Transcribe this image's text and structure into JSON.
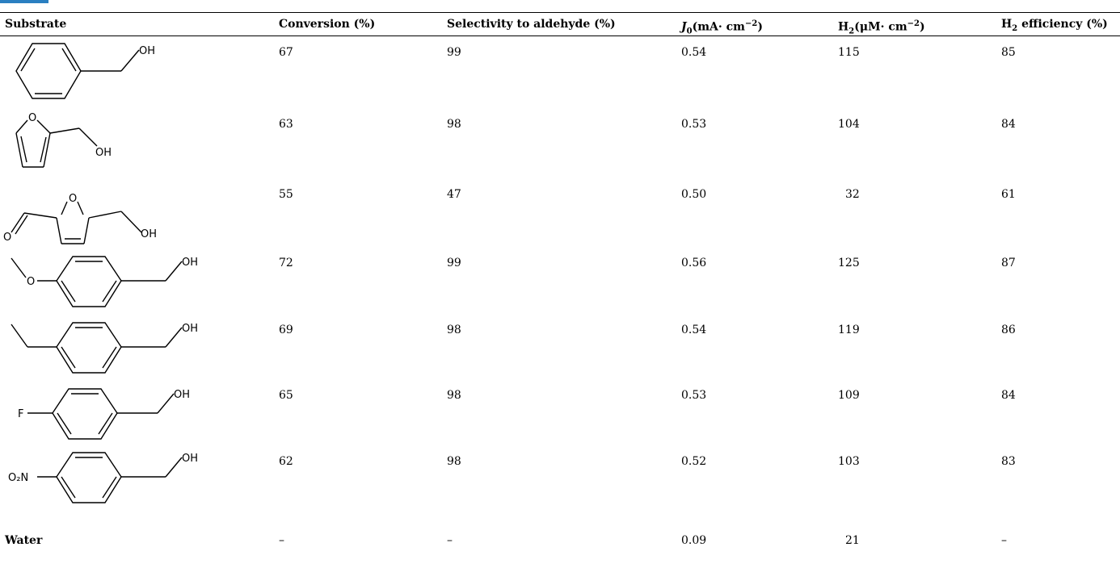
{
  "table": {
    "headers": {
      "substrate": "Substrate",
      "conversion": "Conversion (%)",
      "selectivity": "Selectivity to aldehyde (%)",
      "j0_sym": "J",
      "j0_sub": "0",
      "j0_unit": "(mA· cm",
      "j0_sup": "−2",
      "j0_close": ")",
      "h2_sym": "H",
      "h2_sub": "2",
      "h2_unit": "(μM· cm",
      "h2_sup": "−2",
      "h2_close": ")",
      "eff_sym": "H",
      "eff_sub": "2",
      "eff_rest": " efficiency (%)"
    },
    "rows": [
      {
        "structure": "benzyl-alcohol",
        "labels": [
          "OH"
        ],
        "conversion": "67",
        "selectivity": "99",
        "j0": "0.54",
        "h2": "115",
        "efficiency": "85"
      },
      {
        "structure": "furfuryl-alcohol",
        "labels": [
          "O",
          "OH"
        ],
        "conversion": "63",
        "selectivity": "98",
        "j0": "0.53",
        "h2": "104",
        "efficiency": "84"
      },
      {
        "structure": "hmf",
        "labels": [
          "O",
          "O",
          "OH"
        ],
        "conversion": "55",
        "selectivity": "47",
        "j0": "0.50",
        "h2": "32",
        "efficiency": "61"
      },
      {
        "structure": "4-methoxybenzyl-alcohol",
        "labels": [
          "O",
          "OH"
        ],
        "conversion": "72",
        "selectivity": "99",
        "j0": "0.56",
        "h2": "125",
        "efficiency": "87"
      },
      {
        "structure": "4-ethylbenzyl-alcohol",
        "labels": [
          "OH"
        ],
        "conversion": "69",
        "selectivity": "98",
        "j0": "0.54",
        "h2": "119",
        "efficiency": "86"
      },
      {
        "structure": "4-fluorobenzyl-alcohol",
        "labels": [
          "F",
          "OH"
        ],
        "conversion": "65",
        "selectivity": "98",
        "j0": "0.53",
        "h2": "109",
        "efficiency": "84"
      },
      {
        "structure": "4-nitrobenzyl-alcohol",
        "labels": [
          "O₂N",
          "OH"
        ],
        "conversion": "62",
        "selectivity": "98",
        "j0": "0.52",
        "h2": "103",
        "efficiency": "83"
      },
      {
        "structure": "text",
        "substrate": "Water",
        "conversion": "–",
        "selectivity": "–",
        "j0": "0.09",
        "h2": "21",
        "efficiency": "–"
      }
    ]
  }
}
